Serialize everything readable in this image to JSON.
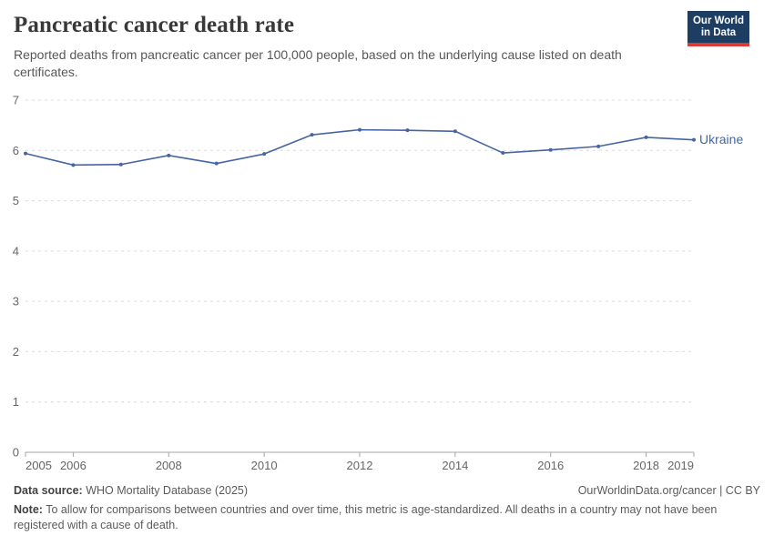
{
  "header": {
    "title": "Pancreatic cancer death rate",
    "subtitle": "Reported deaths from pancreatic cancer per 100,000 people, based on the underlying cause listed on death certificates.",
    "logo": {
      "line1": "Our World",
      "line2": "in Data"
    }
  },
  "chart_data": {
    "type": "line",
    "title": "Pancreatic cancer death rate",
    "xlabel": "",
    "ylabel": "",
    "x": [
      2005,
      2006,
      2007,
      2008,
      2009,
      2010,
      2011,
      2012,
      2013,
      2014,
      2015,
      2016,
      2017,
      2018,
      2019
    ],
    "series": [
      {
        "name": "Ukraine",
        "color": "#4665a5",
        "values": [
          5.94,
          5.71,
          5.72,
          5.9,
          5.74,
          5.93,
          6.31,
          6.41,
          6.4,
          6.38,
          5.95,
          6.01,
          6.08,
          6.26,
          6.21
        ]
      }
    ],
    "ylim": [
      0,
      7
    ],
    "yticks": [
      0,
      1,
      2,
      3,
      4,
      5,
      6,
      7
    ],
    "xtick_labels": [
      2005,
      2006,
      2008,
      2010,
      2012,
      2014,
      2016,
      2018,
      2019
    ],
    "grid": "horizontal-dashed",
    "legend_position": "end-of-line"
  },
  "footer": {
    "source_label": "Data source:",
    "source_text": " WHO Mortality Database (2025)",
    "rights": "OurWorldinData.org/cancer | CC BY",
    "note_label": "Note:",
    "note_text": " To allow for comparisons between countries and over time, this metric is age-standardized. All deaths in a country may not have been registered with a cause of death."
  },
  "colors": {
    "line": "#4665a5",
    "grid": "#dcdcdc",
    "axis": "#a5a5a5",
    "tick_text": "#666666",
    "logo_bg": "#1d3d63",
    "logo_stripe": "#d93a34"
  }
}
